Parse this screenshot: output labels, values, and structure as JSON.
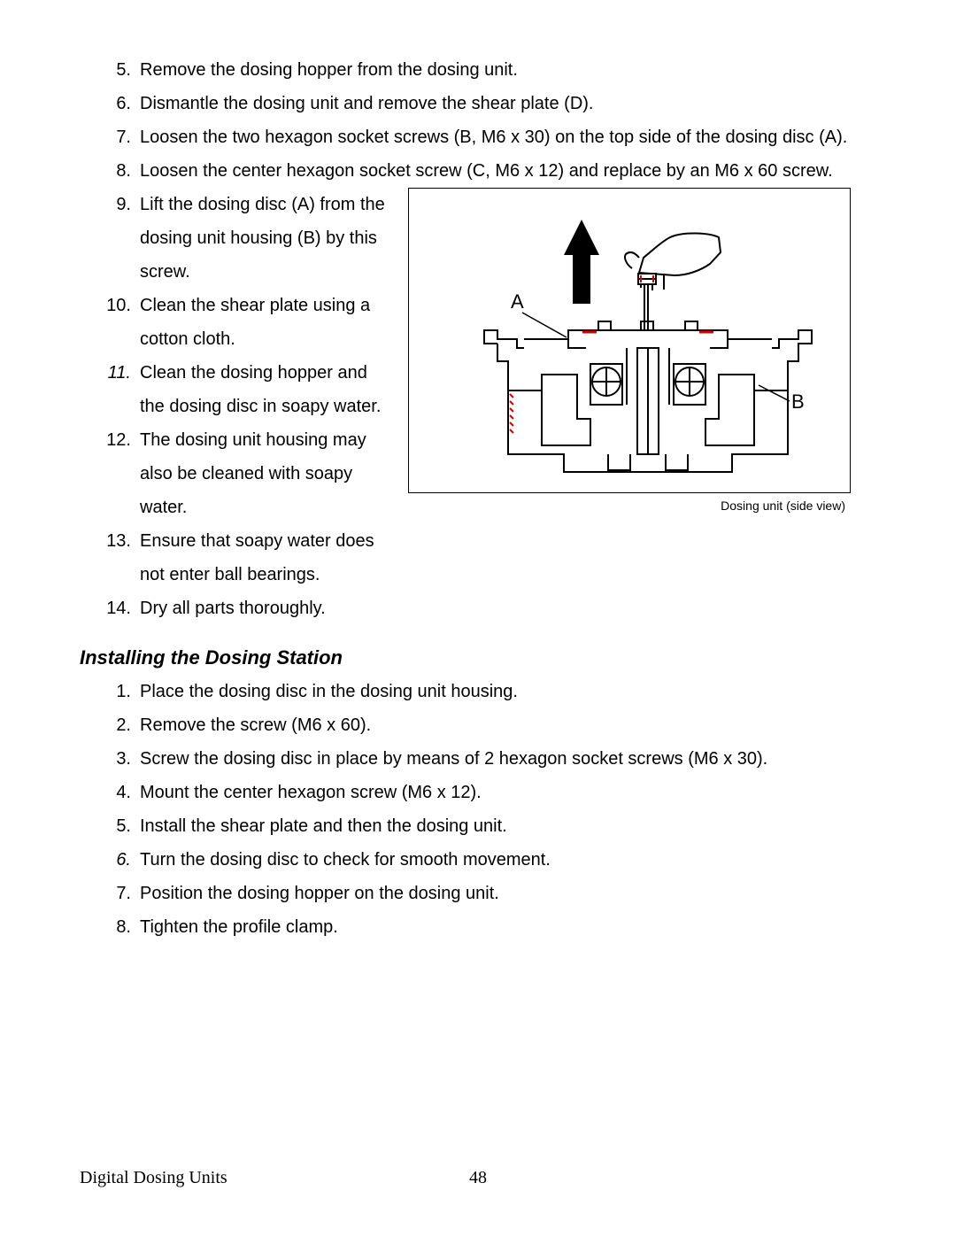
{
  "top_list": {
    "start": 5,
    "items": [
      "Remove the dosing hopper from the dosing unit.",
      "Dismantle the dosing unit and remove the shear plate (D).",
      "Loosen the two hexagon socket screws (B, M6 x 30) on the top side of the dosing disc (A).",
      "Loosen the center hexagon socket screw (C, M6 x 12) and replace by an M6 x 60 screw."
    ]
  },
  "wrap_list": {
    "start": 9,
    "items": [
      {
        "text": "Lift the dosing disc (A) from the dosing unit housing (B) by this screw.",
        "italic": false
      },
      {
        "text": "Clean the shear plate using a cotton cloth.",
        "italic": false
      },
      {
        "text": "Clean the dosing hopper and the dosing disc in soapy water.",
        "italic": true
      },
      {
        "text": "The dosing unit housing may also be cleaned with soapy water.",
        "italic": false
      },
      {
        "text": "Ensure that soapy water does not enter ball bearings.",
        "italic": false
      },
      {
        "text": "Dry all parts thoroughly.",
        "italic": false
      }
    ]
  },
  "figure": {
    "caption": "Dosing unit (side view)",
    "label_a": "A",
    "label_b": "B"
  },
  "section_heading": "Installing the Dosing Station",
  "install_list": {
    "start": 1,
    "items": [
      {
        "text": "Place the dosing disc in the dosing unit housing.",
        "italic": false
      },
      {
        "text": "Remove the screw (M6 x 60).",
        "italic": false
      },
      {
        "text": "Screw the dosing disc in place by means of 2 hexagon socket screws (M6 x 30).",
        "italic": false
      },
      {
        "text": "Mount the center hexagon screw (M6 x 12).",
        "italic": false
      },
      {
        "text": "Install the shear plate and then the dosing unit.",
        "italic": false
      },
      {
        "text": "Turn the dosing disc to check for smooth movement.",
        "italic": true
      },
      {
        "text": "Position the dosing hopper on the dosing unit.",
        "italic": false
      },
      {
        "text": "Tighten the profile clamp.",
        "italic": false
      }
    ]
  },
  "footer": {
    "title": "Digital Dosing Units",
    "page_number": "48"
  }
}
